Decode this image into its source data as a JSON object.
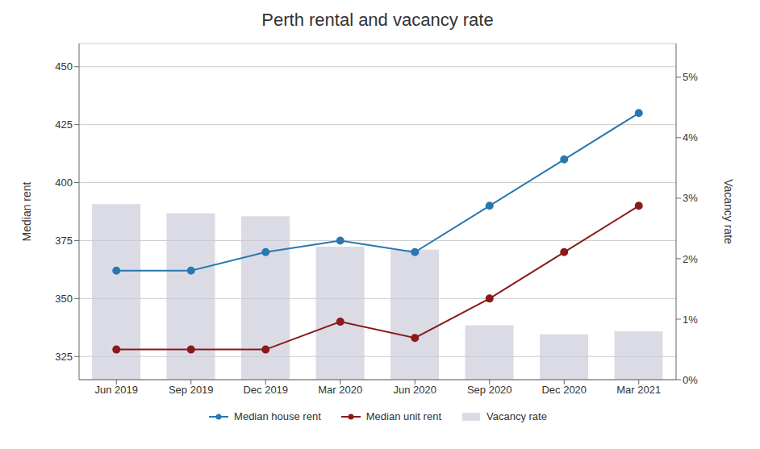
{
  "chart_data": {
    "type": "combo",
    "title": "Perth rental and vacancy rate",
    "categories": [
      "Jun 2019",
      "Sep 2019",
      "Dec 2019",
      "Mar 2020",
      "Jun 2020",
      "Sep 2020",
      "Dec 2020",
      "Mar 2021"
    ],
    "series": [
      {
        "name": "Median house rent",
        "type": "line",
        "color": "#2878b0",
        "marker": "circle",
        "values": [
          362,
          362,
          370,
          375,
          370,
          390,
          410,
          430
        ]
      },
      {
        "name": "Median unit rent",
        "type": "line",
        "color": "#8b1a1a",
        "marker": "circle",
        "values": [
          328,
          328,
          328,
          340,
          333,
          350,
          370,
          390
        ]
      },
      {
        "name": "Vacancy rate",
        "type": "bar",
        "axis": "y2",
        "color": "#c8c8d8",
        "values": [
          2.9,
          2.75,
          2.7,
          2.2,
          2.15,
          0.9,
          0.75,
          0.8
        ]
      }
    ],
    "y_label": "Median rent",
    "y2_label": "Vacancy rate",
    "ylim": [
      315,
      460
    ],
    "yticks": [
      325,
      350,
      375,
      400,
      425,
      450
    ],
    "y2lim": [
      0,
      5.556
    ],
    "y2ticks": [
      {
        "value": 0,
        "label": "0%"
      },
      {
        "value": 1,
        "label": "1%"
      },
      {
        "value": 2,
        "label": "2%"
      },
      {
        "value": 3,
        "label": "3%"
      },
      {
        "value": 4,
        "label": "4%"
      },
      {
        "value": 5,
        "label": "5%"
      }
    ],
    "grid": true,
    "legend": "bottom"
  }
}
